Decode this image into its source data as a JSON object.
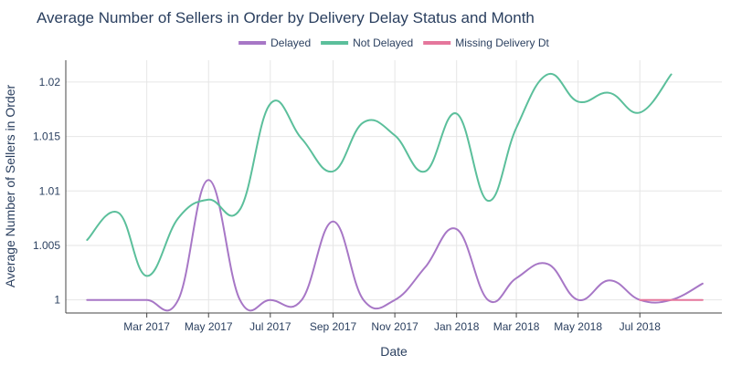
{
  "chart_data": {
    "type": "line",
    "title": "Average Number of Sellers in Order by Delivery Delay Status and Month",
    "xlabel": "Date",
    "ylabel": "Average Number of Sellers in Order",
    "x": [
      "2017-01",
      "2017-02",
      "2017-03",
      "2017-04",
      "2017-05",
      "2017-06",
      "2017-07",
      "2017-08",
      "2017-09",
      "2017-10",
      "2017-11",
      "2017-12",
      "2018-01",
      "2018-02",
      "2018-03",
      "2018-04",
      "2018-05",
      "2018-06",
      "2018-07",
      "2018-08",
      "2018-09"
    ],
    "x_ticks": [
      "2017-03",
      "2017-05",
      "2017-07",
      "2017-09",
      "2017-11",
      "2018-01",
      "2018-03",
      "2018-05",
      "2018-07"
    ],
    "x_tick_labels": [
      "Mar 2017",
      "May 2017",
      "Jul 2017",
      "Sep 2017",
      "Nov 2017",
      "Jan 2018",
      "Mar 2018",
      "May 2018",
      "Jul 2018"
    ],
    "xlim": [
      "2016-12-11",
      "2018-09-20"
    ],
    "y_ticks": [
      1,
      1.005,
      1.01,
      1.015,
      1.02
    ],
    "y_tick_labels": [
      "1",
      "1.005",
      "1.01",
      "1.015",
      "1.02"
    ],
    "ylim": [
      0.9988,
      1.022
    ],
    "grid": true,
    "legend_position": "top-center",
    "series": [
      {
        "name": "Delayed",
        "color": "#a777c6",
        "values": [
          1.0,
          1.0,
          1.0,
          1.0,
          1.011,
          1.0,
          1.0,
          1.0,
          1.0072,
          1.0,
          1.0,
          1.003,
          1.0065,
          1.0,
          1.002,
          1.0033,
          1.0,
          1.0018,
          1.0,
          1.0,
          1.0015
        ]
      },
      {
        "name": "Not Delayed",
        "color": "#5bbf9b",
        "values": [
          1.0055,
          1.008,
          1.0022,
          1.0075,
          1.0092,
          1.0083,
          1.018,
          1.0148,
          1.0118,
          1.0163,
          1.0151,
          1.0118,
          1.0171,
          1.0091,
          1.0158,
          1.0207,
          1.0182,
          1.019,
          1.0172,
          1.0207,
          null
        ]
      },
      {
        "name": "Missing Delivery Dt",
        "color": "#e5779c",
        "values": [
          null,
          null,
          null,
          null,
          null,
          null,
          null,
          null,
          null,
          null,
          null,
          null,
          null,
          null,
          null,
          null,
          null,
          null,
          1.0,
          1.0,
          1.0
        ]
      }
    ]
  }
}
